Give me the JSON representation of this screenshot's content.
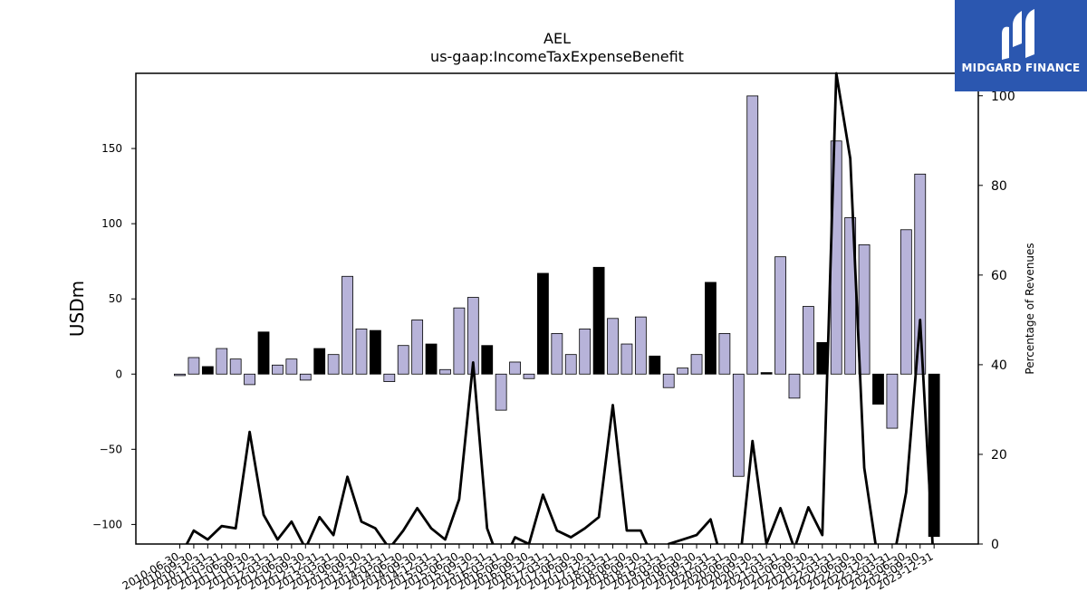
{
  "chart_data": {
    "type": "bar+line",
    "title": "AEL",
    "subtitle": "us-gaap:IncomeTaxExpenseBenefit",
    "ylabel": "USDm",
    "y2label": "Percentage of Revenues",
    "ylim": [
      -113,
      200
    ],
    "y2lim": [
      0,
      105
    ],
    "yticks": [
      -100,
      -50,
      0,
      50,
      100,
      150
    ],
    "y2ticks": [
      0,
      20,
      40,
      60,
      80,
      100
    ],
    "categories": [
      "2010-06-30",
      "2010-09-30",
      "2010-12-31",
      "2011-03-31",
      "2011-06-30",
      "2011-09-30",
      "2011-12-31",
      "2012-03-31",
      "2012-06-30",
      "2012-09-30",
      "2012-12-31",
      "2013-03-31",
      "2013-06-30",
      "2013-09-30",
      "2013-12-31",
      "2014-03-31",
      "2014-06-30",
      "2014-09-30",
      "2014-12-31",
      "2015-03-31",
      "2015-06-30",
      "2015-09-30",
      "2015-12-31",
      "2016-03-31",
      "2016-06-30",
      "2016-09-30",
      "2016-12-31",
      "2017-03-31",
      "2017-06-30",
      "2017-09-30",
      "2017-12-31",
      "2018-03-31",
      "2018-06-30",
      "2018-09-30",
      "2018-12-31",
      "2019-03-31",
      "2019-06-30",
      "2019-09-30",
      "2019-12-31",
      "2020-03-31",
      "2020-06-30",
      "2020-09-30",
      "2020-12-31",
      "2021-03-31",
      "2021-06-30",
      "2021-09-30",
      "2021-12-31",
      "2022-03-31",
      "2022-06-30",
      "2022-09-30",
      "2022-12-31",
      "2023-03-31",
      "2023-06-30",
      "2023-09-30",
      "2023-12-31"
    ],
    "tick_labels": [
      "2010-06-30",
      "2010-09-30",
      "2010-12-31",
      "2011-03-31",
      "2011-06-30",
      "2011-09-30",
      "2011-12-31",
      "2012-03-31",
      "2012-06-30",
      "2012-09-30",
      "2012-12-31",
      "2013-03-31",
      "2013-06-30",
      "2013-09-30",
      "2013-12-31",
      "2014-03-31",
      "2014-06-30",
      "2014-09-30",
      "2014-12-31",
      "2015-03-31",
      "2015-06-30",
      "2015-09-30",
      "2015-12-31",
      "2016-03-31",
      "2016-06-30",
      "2016-09-30",
      "2016-12-31",
      "2017-03-31",
      "2017-06-30",
      "2017-09-30",
      "2017-12-31",
      "2018-03-31",
      "2018-06-30",
      "2018-09-30",
      "2018-12-31",
      "2019-03-31",
      "2019-06-30",
      "2019-09-30",
      "2019-12-31",
      "2020-03-31",
      "2020-06-30",
      "2020-09-30",
      "2020-12-31",
      "2021-03-31",
      "2021-06-30",
      "2021-09-30",
      "2021-12-31",
      "2022-03-31",
      "2022-06-30",
      "2022-09-30",
      "2022-12-31",
      "2023-03-31",
      "2023-06-30",
      "2023-09-30",
      "2023-12-31"
    ],
    "series": [
      {
        "values": [
          -1,
          11,
          5,
          17,
          10,
          -7,
          28,
          6,
          10,
          -4,
          17,
          13,
          65,
          30,
          29,
          -5,
          19,
          36,
          20,
          3,
          44,
          51,
          19,
          -24,
          8,
          -3,
          67,
          27,
          13,
          30,
          71,
          37,
          20,
          38,
          12,
          -9,
          4,
          13,
          61,
          27,
          -68,
          185,
          1,
          78,
          -16,
          45,
          21,
          155,
          104,
          86,
          -20,
          -36,
          96,
          133,
          -108
        ],
        "colors": [
          "#b7b3d9",
          "#b7b3d9",
          "#000000",
          "#b7b3d9",
          "#b7b3d9",
          "#b7b3d9",
          "#000000",
          "#b7b3d9",
          "#b7b3d9",
          "#b7b3d9",
          "#000000",
          "#b7b3d9",
          "#b7b3d9",
          "#b7b3d9",
          "#000000",
          "#b7b3d9",
          "#b7b3d9",
          "#b7b3d9",
          "#000000",
          "#b7b3d9",
          "#b7b3d9",
          "#b7b3d9",
          "#000000",
          "#b7b3d9",
          "#b7b3d9",
          "#b7b3d9",
          "#000000",
          "#b7b3d9",
          "#b7b3d9",
          "#b7b3d9",
          "#000000",
          "#b7b3d9",
          "#b7b3d9",
          "#b7b3d9",
          "#000000",
          "#b7b3d9",
          "#b7b3d9",
          "#b7b3d9",
          "#000000",
          "#b7b3d9",
          "#b7b3d9",
          "#b7b3d9",
          "#000000",
          "#b7b3d9",
          "#b7b3d9",
          "#b7b3d9",
          "#000000",
          "#b7b3d9",
          "#b7b3d9",
          "#b7b3d9",
          "#000000",
          "#b7b3d9",
          "#b7b3d9",
          "#b7b3d9",
          "#000000"
        ]
      },
      {
        "axis": "right",
        "values": [
          -3,
          3,
          1,
          4,
          3.5,
          25,
          6.5,
          1,
          5,
          -1,
          6,
          2,
          15,
          5,
          3.5,
          -1,
          3,
          8,
          3.5,
          1,
          10,
          40.5,
          3.5,
          -5,
          1.5,
          0,
          11,
          3,
          1.5,
          3.5,
          6,
          31,
          3,
          3,
          -4,
          0,
          1,
          2,
          5.5,
          -6,
          -7,
          23,
          0,
          8,
          -1,
          8.2,
          2,
          105,
          86,
          17,
          -4,
          -5,
          11.5,
          50,
          -6
        ]
      }
    ],
    "colors": {
      "positive_bar": "#b7b3d9",
      "black_bar": "#000000",
      "line": "#000000"
    }
  },
  "logo": {
    "text": "MIDGARD FINANCE",
    "background": "#2b57b0",
    "icon": "midgard-logo-icon"
  }
}
